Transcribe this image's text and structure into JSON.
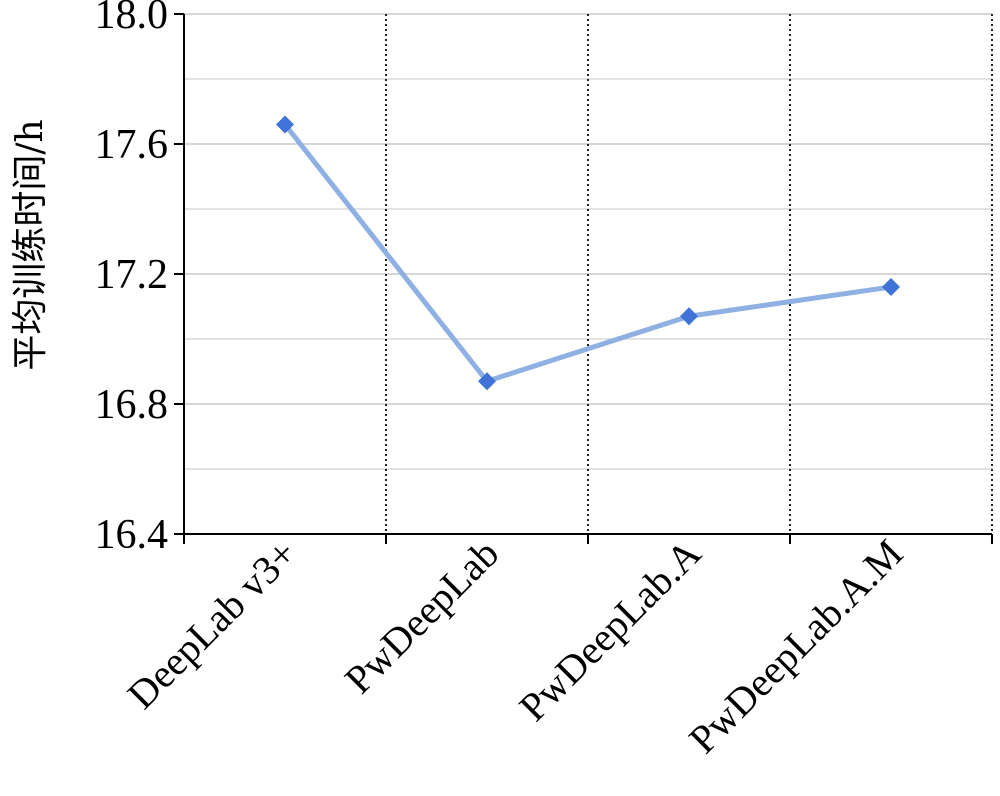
{
  "chart_data": {
    "type": "line",
    "categories": [
      "DeepLab v3+",
      "PwDeepLab",
      "PwDeepLab.A",
      "PwDeepLab.A.M"
    ],
    "series": [
      {
        "values": [
          17.66,
          16.87,
          17.07,
          17.16
        ],
        "color": "#8FB0E3",
        "marker": "diamond",
        "marker_color": "#3F73D8"
      }
    ],
    "ylabel": "平均训练时间/h",
    "xlabel": "",
    "ylim": [
      16.4,
      18.0
    ],
    "yticks": [
      "16.4",
      "16.8",
      "17.2",
      "17.6",
      "18.0"
    ],
    "ytick_values": [
      16.4,
      16.8,
      17.2,
      17.6,
      18.0
    ],
    "minor_gridlines": [
      16.6,
      17.0,
      17.4,
      17.8
    ],
    "vertical_gridlines": "dotted between categories",
    "legend": "none"
  }
}
